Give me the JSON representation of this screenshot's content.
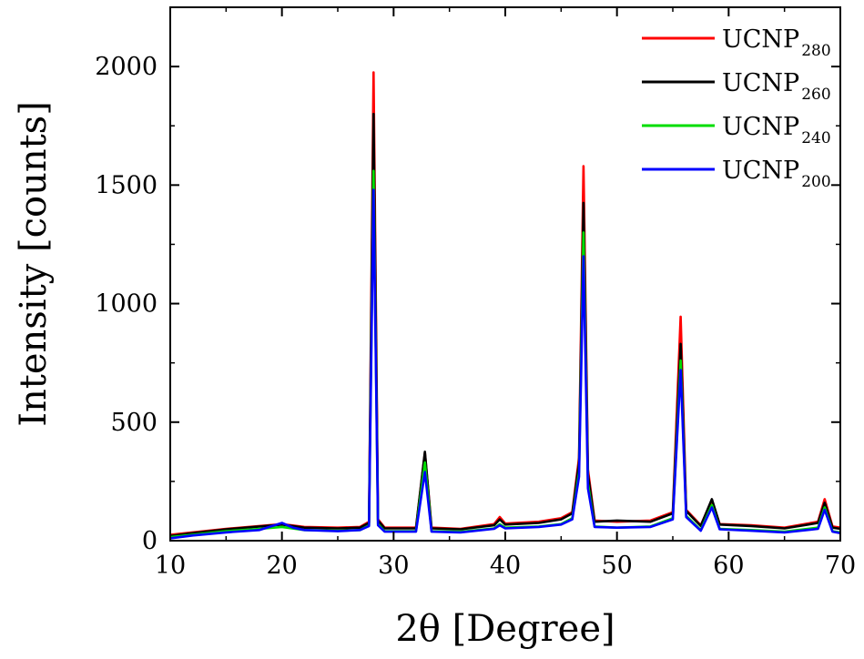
{
  "chart_data": {
    "type": "line",
    "title": "",
    "xlabel": "2θ [Degree]",
    "ylabel": "Intensity [counts]",
    "xlim": [
      10,
      70
    ],
    "ylim": [
      0,
      2250
    ],
    "x_ticks": [
      10,
      20,
      30,
      40,
      50,
      60,
      70
    ],
    "y_ticks": [
      0,
      500,
      1000,
      1500,
      2000
    ],
    "grid": false,
    "legend_position": "top-right",
    "series": [
      {
        "name": "UCNP",
        "name_sub": "280",
        "color": "#ff0000",
        "points": [
          [
            10,
            25
          ],
          [
            12,
            35
          ],
          [
            15,
            50
          ],
          [
            18,
            62
          ],
          [
            20,
            70
          ],
          [
            22,
            58
          ],
          [
            25,
            55
          ],
          [
            27,
            58
          ],
          [
            27.8,
            80
          ],
          [
            28.2,
            1975
          ],
          [
            28.6,
            90
          ],
          [
            29.2,
            55
          ],
          [
            32,
            55
          ],
          [
            32.8,
            370
          ],
          [
            33.4,
            55
          ],
          [
            36,
            50
          ],
          [
            39,
            70
          ],
          [
            39.5,
            100
          ],
          [
            40,
            72
          ],
          [
            43,
            80
          ],
          [
            45,
            95
          ],
          [
            46,
            120
          ],
          [
            46.6,
            350
          ],
          [
            47,
            1580
          ],
          [
            47.4,
            300
          ],
          [
            48,
            85
          ],
          [
            50,
            80
          ],
          [
            53,
            85
          ],
          [
            55,
            120
          ],
          [
            55.7,
            945
          ],
          [
            56.2,
            130
          ],
          [
            57.5,
            65
          ],
          [
            58.5,
            170
          ],
          [
            59.2,
            70
          ],
          [
            62,
            65
          ],
          [
            65,
            55
          ],
          [
            68,
            80
          ],
          [
            68.6,
            175
          ],
          [
            69.3,
            60
          ],
          [
            70,
            55
          ]
        ]
      },
      {
        "name": "UCNP",
        "name_sub": "260",
        "color": "#000000",
        "points": [
          [
            10,
            20
          ],
          [
            12,
            32
          ],
          [
            15,
            48
          ],
          [
            18,
            60
          ],
          [
            20,
            68
          ],
          [
            22,
            55
          ],
          [
            25,
            52
          ],
          [
            27,
            55
          ],
          [
            27.8,
            75
          ],
          [
            28.2,
            1800
          ],
          [
            28.6,
            85
          ],
          [
            29.2,
            52
          ],
          [
            32,
            52
          ],
          [
            32.8,
            375
          ],
          [
            33.4,
            52
          ],
          [
            36,
            48
          ],
          [
            39,
            65
          ],
          [
            39.5,
            90
          ],
          [
            40,
            68
          ],
          [
            43,
            75
          ],
          [
            45,
            90
          ],
          [
            46,
            115
          ],
          [
            46.6,
            330
          ],
          [
            47,
            1425
          ],
          [
            47.4,
            280
          ],
          [
            48,
            80
          ],
          [
            50,
            85
          ],
          [
            53,
            80
          ],
          [
            55,
            115
          ],
          [
            55.7,
            830
          ],
          [
            56.2,
            125
          ],
          [
            57.5,
            62
          ],
          [
            58.5,
            175
          ],
          [
            59.2,
            68
          ],
          [
            62,
            62
          ],
          [
            65,
            52
          ],
          [
            68,
            75
          ],
          [
            68.6,
            160
          ],
          [
            69.3,
            55
          ],
          [
            70,
            50
          ]
        ]
      },
      {
        "name": "UCNP",
        "name_sub": "240",
        "color": "#00dd00",
        "points": [
          [
            10,
            15
          ],
          [
            12,
            25
          ],
          [
            15,
            40
          ],
          [
            18,
            50
          ],
          [
            20,
            58
          ],
          [
            22,
            45
          ],
          [
            25,
            42
          ],
          [
            27,
            45
          ],
          [
            27.8,
            65
          ],
          [
            28.2,
            1560
          ],
          [
            28.6,
            70
          ],
          [
            29.2,
            40
          ],
          [
            32,
            40
          ],
          [
            32.8,
            330
          ],
          [
            33.4,
            40
          ],
          [
            36,
            38
          ],
          [
            39,
            52
          ],
          [
            39.5,
            70
          ],
          [
            40,
            55
          ],
          [
            43,
            60
          ],
          [
            45,
            70
          ],
          [
            46,
            95
          ],
          [
            46.6,
            290
          ],
          [
            47,
            1300
          ],
          [
            47.4,
            240
          ],
          [
            48,
            60
          ],
          [
            50,
            55
          ],
          [
            53,
            60
          ],
          [
            55,
            95
          ],
          [
            55.7,
            760
          ],
          [
            56.2,
            105
          ],
          [
            57.5,
            45
          ],
          [
            58.5,
            150
          ],
          [
            59.2,
            50
          ],
          [
            62,
            45
          ],
          [
            65,
            38
          ],
          [
            68,
            55
          ],
          [
            68.6,
            140
          ],
          [
            69.3,
            40
          ],
          [
            70,
            35
          ]
        ]
      },
      {
        "name": "UCNP",
        "name_sub": "200",
        "color": "#0000ff",
        "points": [
          [
            10,
            10
          ],
          [
            12,
            22
          ],
          [
            15,
            35
          ],
          [
            18,
            45
          ],
          [
            20,
            75
          ],
          [
            21,
            55
          ],
          [
            22,
            45
          ],
          [
            25,
            40
          ],
          [
            27,
            45
          ],
          [
            27.8,
            62
          ],
          [
            28.2,
            1480
          ],
          [
            28.6,
            65
          ],
          [
            29.2,
            38
          ],
          [
            32,
            38
          ],
          [
            32.8,
            290
          ],
          [
            33.4,
            38
          ],
          [
            36,
            35
          ],
          [
            39,
            50
          ],
          [
            39.5,
            65
          ],
          [
            40,
            52
          ],
          [
            43,
            58
          ],
          [
            45,
            68
          ],
          [
            46,
            90
          ],
          [
            46.6,
            270
          ],
          [
            47,
            1200
          ],
          [
            47.4,
            220
          ],
          [
            48,
            58
          ],
          [
            50,
            55
          ],
          [
            53,
            58
          ],
          [
            55,
            90
          ],
          [
            55.7,
            720
          ],
          [
            56.2,
            100
          ],
          [
            57.5,
            42
          ],
          [
            58.5,
            140
          ],
          [
            59.2,
            48
          ],
          [
            62,
            42
          ],
          [
            65,
            35
          ],
          [
            68,
            50
          ],
          [
            68.6,
            130
          ],
          [
            69.3,
            38
          ],
          [
            70,
            32
          ]
        ]
      }
    ]
  }
}
